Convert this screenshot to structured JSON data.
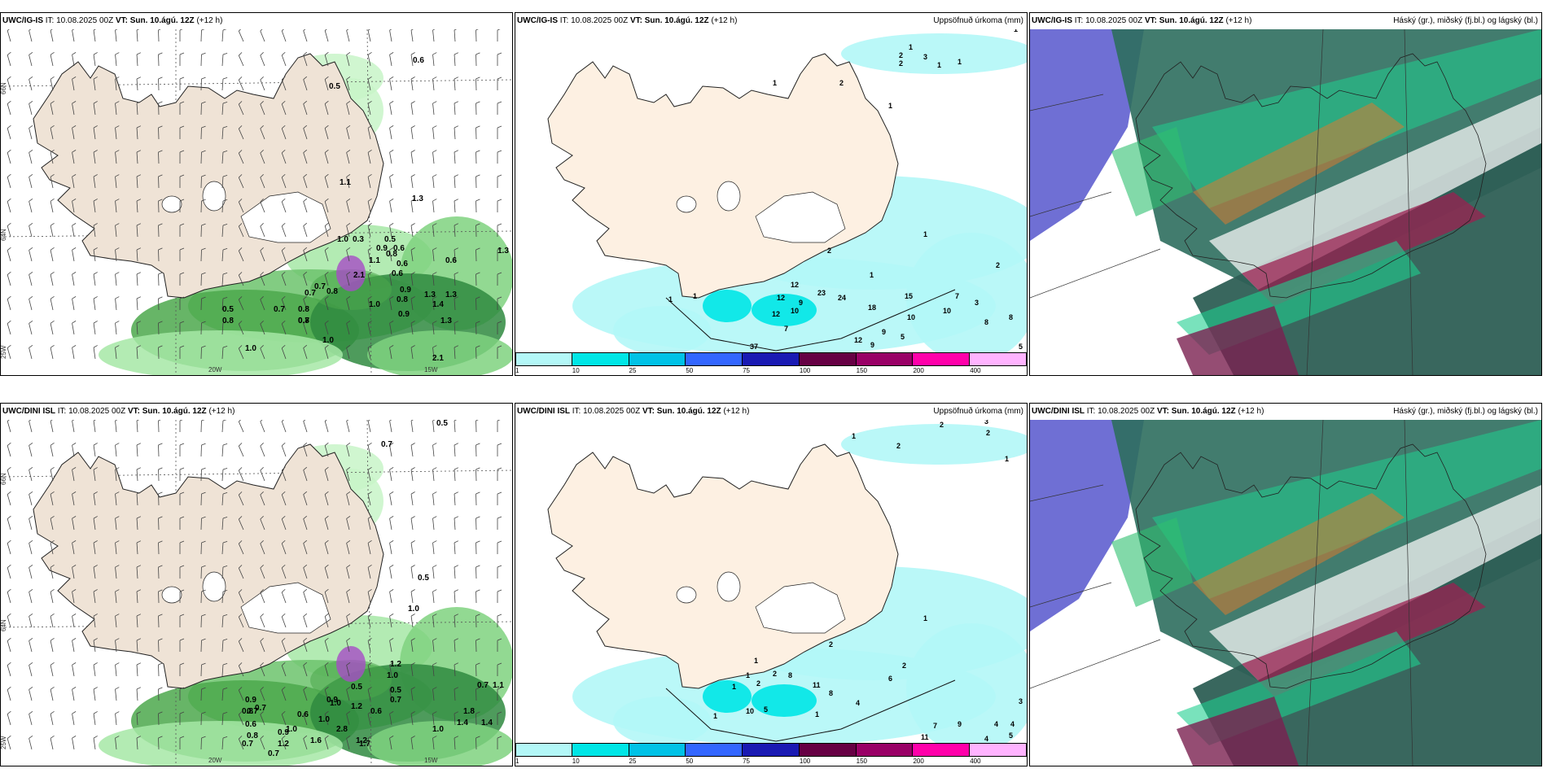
{
  "rows": [
    {
      "model": "UWC/IG-IS",
      "panels": [
        {
          "type": "wind",
          "labels": [
            [
              "0.6",
              506,
              76
            ],
            [
              "0.5",
              403,
              108
            ],
            [
              "1.1",
              416,
              226
            ],
            [
              "1.3",
              505,
              246
            ],
            [
              "1.0",
              413,
              296
            ],
            [
              "0.3",
              432,
              296
            ],
            [
              "0.5",
              471,
              296
            ],
            [
              "0.6",
              482,
              307
            ],
            [
              "0.9",
              461,
              307
            ],
            [
              "0.8",
              473,
              314
            ],
            [
              "2.1",
              433,
              340
            ],
            [
              "1.1",
              452,
              322
            ],
            [
              "0.6",
              486,
              326
            ],
            [
              "0.6",
              546,
              322
            ],
            [
              "1.3",
              610,
              310
            ],
            [
              "0.6",
              480,
              338
            ],
            [
              "0.9",
              490,
              358
            ],
            [
              "0.7",
              385,
              354
            ],
            [
              "0.8",
              400,
              360
            ],
            [
              "0.7",
              373,
              362
            ],
            [
              "0.5",
              272,
              382
            ],
            [
              "0.8",
              272,
              396
            ],
            [
              "0.7",
              335,
              382
            ],
            [
              "0.8",
              365,
              382
            ],
            [
              "0.8",
              365,
              396
            ],
            [
              "0.7",
              365,
              396
            ],
            [
              "1.0",
              452,
              376
            ],
            [
              "0.8",
              486,
              370
            ],
            [
              "0.9",
              488,
              388
            ],
            [
              "1.3",
              520,
              364
            ],
            [
              "1.3",
              546,
              364
            ],
            [
              "1.4",
              530,
              376
            ],
            [
              "1.3",
              540,
              396
            ],
            [
              "1.0",
              300,
              430
            ],
            [
              "1.0",
              395,
              420
            ],
            [
              "2.1",
              530,
              442
            ]
          ],
          "axis": {
            "lat_top": "66N",
            "lat_mid": "64N",
            "lat_bot": "25W",
            "lon_a": "20W",
            "lon_b": "15W"
          }
        },
        {
          "type": "precip",
          "title_right": "Uppsöfnuð úrkoma (mm)",
          "numbers": [
            [
              "1",
              1244,
              38
            ],
            [
              "2",
              1103,
              70
            ],
            [
              "1",
              1115,
              60
            ],
            [
              "2",
              1103,
              80
            ],
            [
              "1",
              1150,
              82
            ],
            [
              "3",
              1133,
              72
            ],
            [
              "1",
              1175,
              78
            ],
            [
              "1",
              948,
              104
            ],
            [
              "2",
              1030,
              104
            ],
            [
              "1",
              1090,
              132
            ],
            [
              "1",
              1133,
              290
            ],
            [
              "2",
              1015,
              310
            ],
            [
              "2",
              1222,
              328
            ],
            [
              "1",
              1067,
              340
            ],
            [
              "12",
              970,
              352
            ],
            [
              "23",
              1003,
              362
            ],
            [
              "24",
              1028,
              368
            ],
            [
              "15",
              1110,
              366
            ],
            [
              "12",
              953,
              368
            ],
            [
              "9",
              980,
              374
            ],
            [
              "10",
              970,
              384
            ],
            [
              "18",
              1065,
              380
            ],
            [
              "7",
              1172,
              366
            ],
            [
              "3",
              1196,
              374
            ],
            [
              "10",
              1113,
              392
            ],
            [
              "10",
              1157,
              384
            ],
            [
              "8",
              1238,
              392
            ],
            [
              "8",
              1208,
              398
            ],
            [
              "1",
              820,
              370
            ],
            [
              "1",
              850,
              366
            ],
            [
              "12",
              947,
              388
            ],
            [
              "7",
              962,
              406
            ],
            [
              "9",
              1082,
              410
            ],
            [
              "5",
              1105,
              416
            ],
            [
              "12",
              1048,
              420
            ],
            [
              "9",
              1068,
              426
            ],
            [
              "37",
              920,
              428
            ],
            [
              "5",
              1250,
              428
            ]
          ],
          "colorbar": {
            "ticks": [
              "1",
              "10",
              "25",
              "50",
              "75",
              "100",
              "150",
              "200",
              "400"
            ],
            "colors": [
              "#b3f7f7",
              "#00e6e6",
              "#00c2e6",
              "#3366ff",
              "#1a1ab3",
              "#660044",
              "#990066",
              "#ff00aa",
              "#ffb3ff"
            ]
          }
        },
        {
          "type": "cloud",
          "title_right": "Háský (gr.), miðský (fj.bl.) og lágský (bl.)"
        }
      ]
    },
    {
      "model": "UWC/DINI ISL",
      "panels": [
        {
          "type": "wind",
          "labels": [
            [
              "0.5",
              535,
              522
            ],
            [
              "0.7",
              467,
              548
            ],
            [
              "0.5",
              512,
              712
            ],
            [
              "1.0",
              500,
              750
            ],
            [
              "1.2",
              478,
              818
            ],
            [
              "1.0",
              474,
              832
            ],
            [
              "0.5",
              478,
              850
            ],
            [
              "0.7",
              478,
              862
            ],
            [
              "0.7",
              585,
              844
            ],
            [
              "1.1",
              604,
              844
            ],
            [
              "0.5",
              430,
              846
            ],
            [
              "0.9",
              300,
              862
            ],
            [
              "0.7",
              312,
              872
            ],
            [
              "0.8",
              296,
              876
            ],
            [
              "0.7",
              302,
              876
            ],
            [
              "0.6",
              364,
              880
            ],
            [
              "1.0",
              390,
              886
            ],
            [
              "0.9",
              400,
              862
            ],
            [
              "1.0",
              404,
              866
            ],
            [
              "1.2",
              430,
              870
            ],
            [
              "0.6",
              454,
              876
            ],
            [
              "0.9",
              340,
              902
            ],
            [
              "1.0",
              350,
              898
            ],
            [
              "2.8",
              412,
              898
            ],
            [
              "1.6",
              380,
              912
            ],
            [
              "1.2",
              436,
              912
            ],
            [
              "0.6",
              300,
              892
            ],
            [
              "0.8",
              302,
              906
            ],
            [
              "0.7",
              296,
              916
            ],
            [
              "1.2",
              340,
              916
            ],
            [
              "0.7",
              328,
              928
            ],
            [
              "1.0",
              530,
              898
            ],
            [
              "1.8",
              568,
              876
            ],
            [
              "1.4",
              590,
              890
            ],
            [
              "1.4",
              560,
              890
            ],
            [
              "1.7",
              440,
              916
            ]
          ],
          "axis": {
            "lat_top": "66N",
            "lat_mid": "64N",
            "lat_bot": "25W",
            "lon_a": "20W",
            "lon_b": "15W"
          }
        },
        {
          "type": "precip",
          "title_right": "Uppsöfnuð úrkoma (mm)",
          "numbers": [
            [
              "2",
              1153,
              524
            ],
            [
              "3",
              1208,
              520
            ],
            [
              "2",
              1210,
              534
            ],
            [
              "1",
              1045,
              538
            ],
            [
              "2",
              1100,
              550
            ],
            [
              "1",
              1233,
              566
            ],
            [
              "1",
              1133,
              762
            ],
            [
              "2",
              1017,
              794
            ],
            [
              "2",
              1107,
              820
            ],
            [
              "1",
              925,
              814
            ],
            [
              "1",
              915,
              832
            ],
            [
              "2",
              948,
              830
            ],
            [
              "8",
              967,
              832
            ],
            [
              "1",
              898,
              846
            ],
            [
              "2",
              928,
              842
            ],
            [
              "11",
              997,
              844
            ],
            [
              "8",
              1017,
              854
            ],
            [
              "6",
              1090,
              836
            ],
            [
              "10",
              915,
              876
            ],
            [
              "5",
              937,
              874
            ],
            [
              "4",
              1050,
              866
            ],
            [
              "1",
              875,
              882
            ],
            [
              "1",
              1000,
              880
            ],
            [
              "9",
              1175,
              892
            ],
            [
              "7",
              1145,
              894
            ],
            [
              "4",
              1220,
              892
            ],
            [
              "4",
              1240,
              892
            ],
            [
              "3",
              1250,
              864
            ],
            [
              "5",
              1238,
              906
            ],
            [
              "11",
              1130,
              908
            ],
            [
              "4",
              1208,
              910
            ]
          ],
          "colorbar": {
            "ticks": [
              "1",
              "10",
              "25",
              "50",
              "75",
              "100",
              "150",
              "200",
              "400"
            ],
            "colors": [
              "#b3f7f7",
              "#00e6e6",
              "#00c2e6",
              "#3366ff",
              "#1a1ab3",
              "#660044",
              "#990066",
              "#ff00aa",
              "#ffb3ff"
            ]
          }
        },
        {
          "type": "cloud",
          "title_right": "Háský (gr.), miðský (fj.bl.) og lágský (bl.)"
        }
      ]
    }
  ],
  "header": {
    "it_label": "IT:",
    "it_value": "10.08.2025 00Z",
    "vt_label": "VT:",
    "vt_value": "Sun. 10.ágú. 12Z",
    "lead": "(+12 h)"
  }
}
